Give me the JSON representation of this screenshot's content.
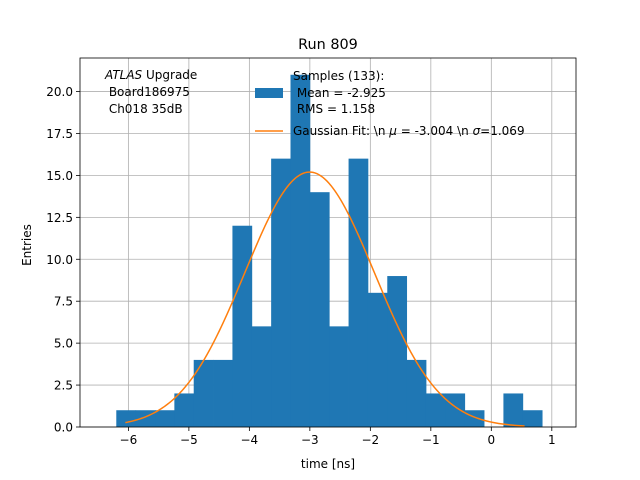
{
  "chart_data": {
    "type": "bar",
    "title": "Run 809",
    "xlabel": "time [ns]",
    "ylabel": "Entries",
    "xlim": [
      -6.8,
      1.4
    ],
    "ylim": [
      0,
      22
    ],
    "grid": true,
    "x_ticks": [
      -6,
      -5,
      -4,
      -3,
      -2,
      -1,
      0,
      1
    ],
    "x_tick_labels": [
      "−6",
      "−5",
      "−4",
      "−3",
      "−2",
      "−1",
      "0",
      "1"
    ],
    "y_ticks": [
      0,
      2.5,
      5,
      7.5,
      10,
      12.5,
      15,
      17.5,
      20
    ],
    "y_tick_labels": [
      "0.0",
      "2.5",
      "5.0",
      "7.5",
      "10.0",
      "12.5",
      "15.0",
      "17.5",
      "20.0"
    ],
    "bin_edges": [
      -6.2,
      -5.88,
      -5.56,
      -5.24,
      -4.92,
      -4.6,
      -4.28,
      -3.96,
      -3.64,
      -3.32,
      -3.0,
      -2.68,
      -2.36,
      -2.04,
      -1.72,
      -1.4,
      -1.08,
      -0.76,
      -0.44,
      -0.12,
      0.2,
      0.52,
      0.84
    ],
    "counts": [
      1,
      1,
      1,
      2,
      4,
      4,
      12,
      6,
      16,
      21,
      14,
      6,
      16,
      8,
      9,
      4,
      2,
      2,
      1,
      0,
      2,
      1
    ],
    "histogram_color": "#1f77b4",
    "fit": {
      "type": "gaussian",
      "mu": -3.004,
      "sigma": 1.069,
      "amplitude": 15.2,
      "x_range": [
        -6.05,
        0.55
      ],
      "color": "#ff7f0e"
    },
    "annotation": {
      "italic": "ATLAS",
      "line1_rest": " Upgrade",
      "line2": " Board186975",
      "line3": " Ch018 35dB"
    },
    "legend": {
      "placement": "top-right",
      "hist_label_lines": [
        "Samples (133):",
        " Mean = -2.925",
        " RMS = 1.158"
      ],
      "fit_label_prefix": "Gaussian Fit: \\n ",
      "fit_label_mu_sym": "μ",
      "fit_label_mid": " = -3.004 \\n ",
      "fit_label_sigma_sym": "σ",
      "fit_label_end": "=1.069"
    }
  }
}
